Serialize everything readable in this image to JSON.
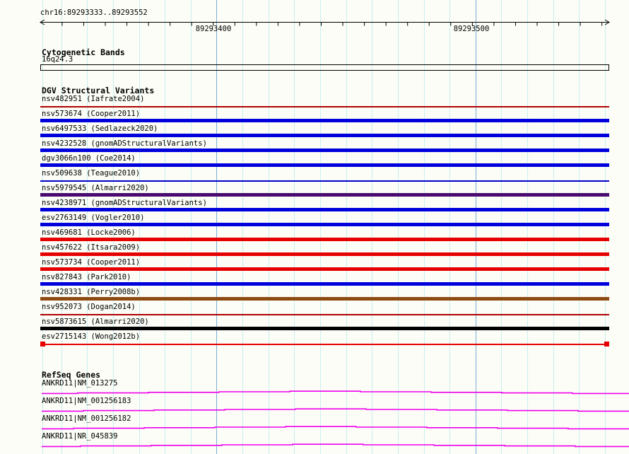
{
  "ruler": {
    "region_label": "chr16:89293333..89293552",
    "tick_labels": [
      "89293400",
      "89293500"
    ]
  },
  "cytogenetic_bands": {
    "title": "Cytogenetic Bands",
    "bands": [
      {
        "name": "16q24.3"
      }
    ]
  },
  "dgv_structural_variants": {
    "title": "DGV Structural Variants",
    "variants": [
      {
        "label": "nsv482951 (Iafrate2004)",
        "glyph": "thin-line",
        "color": "#b00000"
      },
      {
        "label": "nsv573674 (Cooper2011)",
        "glyph": "thick-bar",
        "color": "#0000dd"
      },
      {
        "label": "nsv6497533 (Sedlazeck2020)",
        "glyph": "thick-bar",
        "color": "#0000dd"
      },
      {
        "label": "nsv4232528 (gnomADStructuralVariants)",
        "glyph": "thick-bar",
        "color": "#0000dd"
      },
      {
        "label": "dgv3066n100 (Coe2014)",
        "glyph": "thick-bar",
        "color": "#0000dd"
      },
      {
        "label": "nsv509638 (Teague2010)",
        "glyph": "thin-line",
        "color": "#0000cc"
      },
      {
        "label": "nsv5979545 (Almarri2020)",
        "glyph": "thick-bar",
        "color": "#4a0a70"
      },
      {
        "label": "nsv4238971 (gnomADStructuralVariants)",
        "glyph": "thick-bar",
        "color": "#0000dd"
      },
      {
        "label": "esv2763149 (Vogler2010)",
        "glyph": "thick-bar",
        "color": "#0000dd"
      },
      {
        "label": "nsv469681 (Locke2006)",
        "glyph": "thick-bar",
        "color": "#e60000"
      },
      {
        "label": "nsv457622 (Itsara2009)",
        "glyph": "thick-bar",
        "color": "#e60000"
      },
      {
        "label": "nsv573734 (Cooper2011)",
        "glyph": "thick-bar",
        "color": "#e60000"
      },
      {
        "label": "nsv827843 (Park2010)",
        "glyph": "thick-bar",
        "color": "#0000dd"
      },
      {
        "label": "nsv428331 (Perry2008b)",
        "glyph": "thick-bar",
        "color": "#8f4a12"
      },
      {
        "label": "nsv952073 (Dogan2014)",
        "glyph": "thin-line",
        "color": "#b00000"
      },
      {
        "label": "nsv5873615 (Almarri2020)",
        "glyph": "thick-bar",
        "color": "#000000"
      },
      {
        "label": "esv2715143 (Wong2012b)",
        "glyph": "thin-line-squares",
        "color": "#e60000"
      }
    ]
  },
  "refseq_genes": {
    "title": "RefSeq Genes",
    "line_color": "#ee00ee",
    "genes": [
      {
        "label": "ANKRD11|NM_013275"
      },
      {
        "label": "ANKRD11|NM_001256183"
      },
      {
        "label": "ANKRD11|NM_001256182"
      },
      {
        "label": "ANKRD11|NR_045839"
      }
    ]
  },
  "colors": {
    "background": "#fcfdf6",
    "grid_light": "#c9eef1",
    "grid_dark": "#79aed6",
    "ruler": "#000000"
  }
}
